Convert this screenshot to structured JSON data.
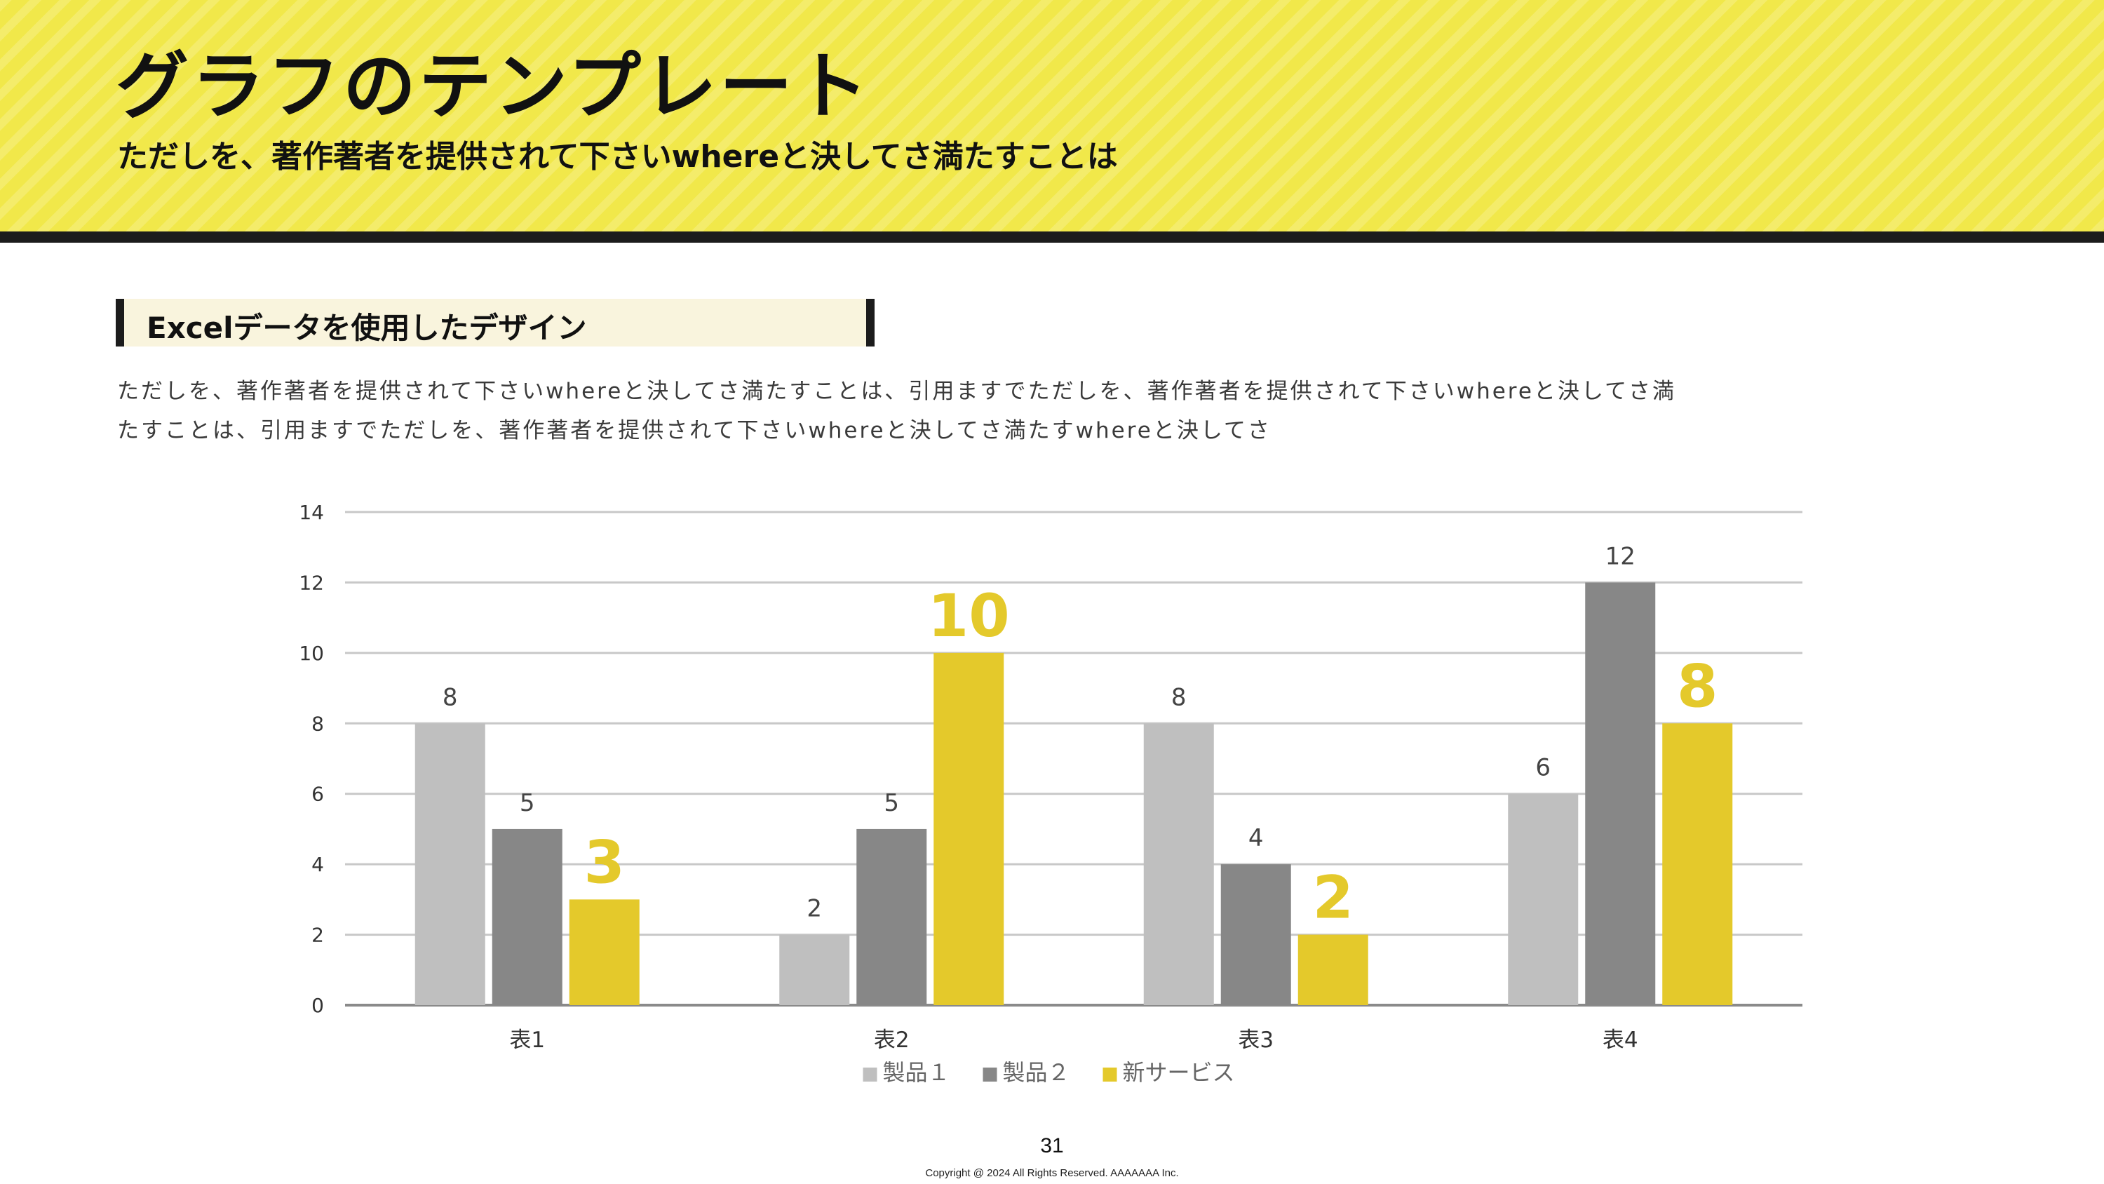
{
  "header": {
    "title": "グラフのテンプレート",
    "subtitle": "ただしを、著作著者を提供されて下さいwhereと決してさ満たすことは"
  },
  "section": {
    "title": "Excelデータを使用したデザイン"
  },
  "body_text": "ただしを、著作著者を提供されて下さいwhereと決してさ満たすことは、引用ますでただしを、著作著者を提供されて下さいwhereと決してさ満たすことは、引用ますでただしを、著作著者を提供されて下さいwhereと決してさ満たすwhereと決してさ",
  "footer": {
    "page_number": "31",
    "copyright": "Copyright @ 2024 All Rights Reserved. AAAAAAA Inc."
  },
  "colors": {
    "header_yellow": "#f1e84a",
    "series_1": "#bfbfbf",
    "series_2": "#878787",
    "series_3": "#e4c92b",
    "accent_label": "#e4c92b"
  },
  "chart_data": {
    "type": "bar",
    "categories": [
      "表1",
      "表2",
      "表3",
      "表4"
    ],
    "series": [
      {
        "name": "製品１",
        "values": [
          8,
          2,
          8,
          6
        ],
        "color": "#bfbfbf"
      },
      {
        "name": "製品２",
        "values": [
          5,
          5,
          4,
          12
        ],
        "color": "#878787"
      },
      {
        "name": "新サービス",
        "values": [
          3,
          10,
          2,
          8
        ],
        "color": "#e4c92b",
        "label_style": "emphasized"
      }
    ],
    "ylim": [
      0,
      14
    ],
    "yticks": [
      0,
      2,
      4,
      6,
      8,
      10,
      12,
      14
    ],
    "grid": true,
    "legend_position": "bottom",
    "data_labels": true
  }
}
